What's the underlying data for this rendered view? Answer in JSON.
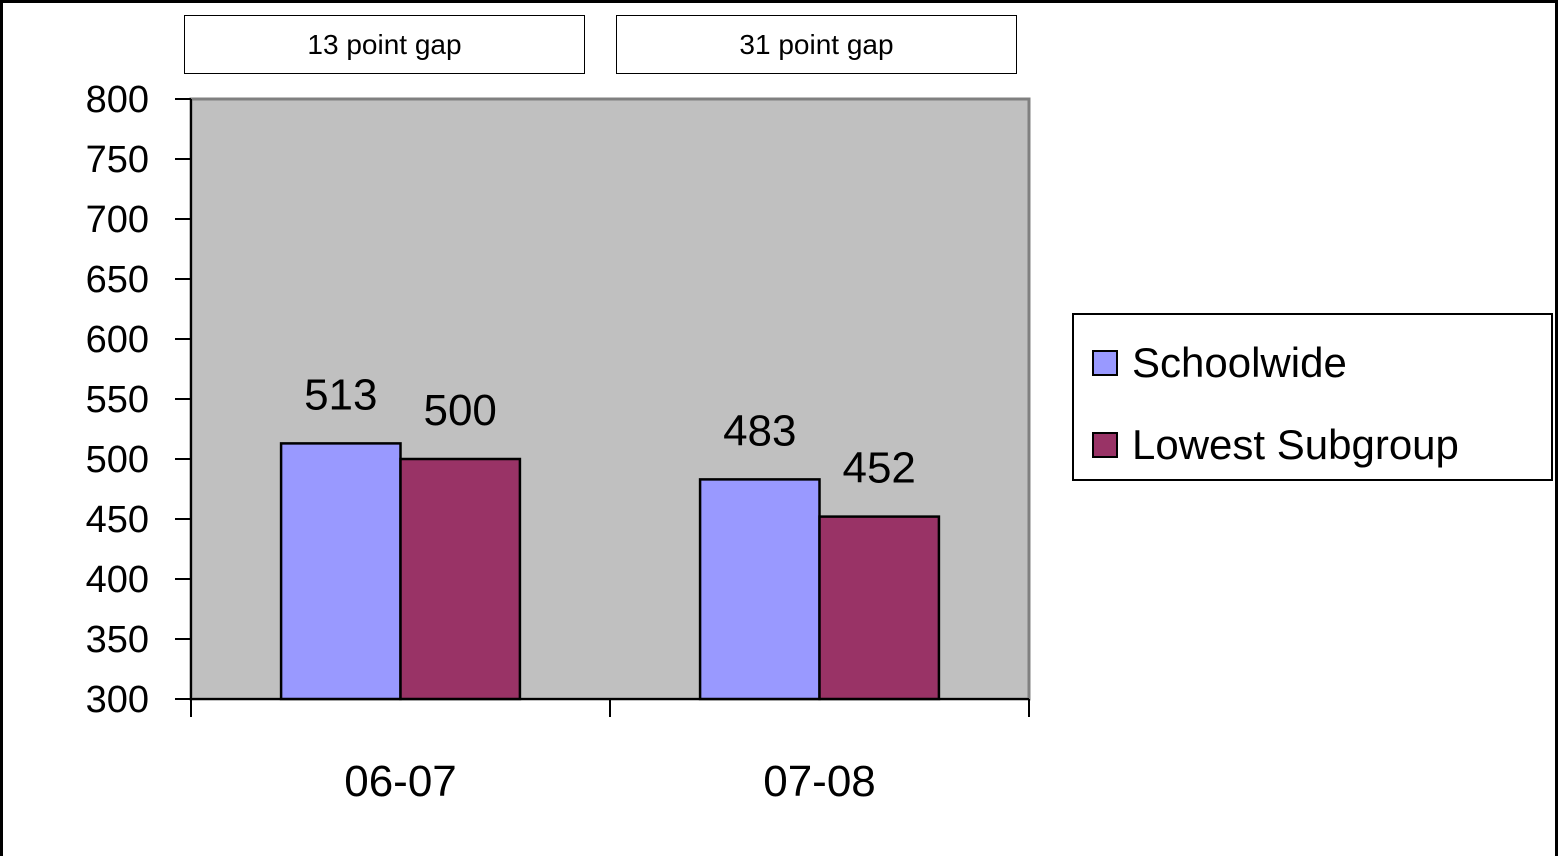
{
  "annotations": {
    "gap_left": "13 point gap",
    "gap_right": "31 point gap"
  },
  "colors": {
    "plot_bg": "#c0c0c0",
    "schoolwide": "#9999ff",
    "lowest_subgroup": "#993366"
  },
  "chart_data": {
    "type": "bar",
    "title": "",
    "xlabel": "",
    "ylabel": "",
    "categories": [
      "06-07",
      "07-08"
    ],
    "series": [
      {
        "name": "Schoolwide",
        "values": [
          513,
          483
        ],
        "color": "#9999ff"
      },
      {
        "name": "Lowest Subgroup",
        "values": [
          500,
          452
        ],
        "color": "#993366"
      }
    ],
    "ylim": [
      300,
      800
    ],
    "yticks": [
      800,
      750,
      700,
      650,
      600,
      550,
      500,
      450,
      400,
      350,
      300
    ],
    "data_labels": true,
    "grid": false,
    "legend": "right"
  }
}
